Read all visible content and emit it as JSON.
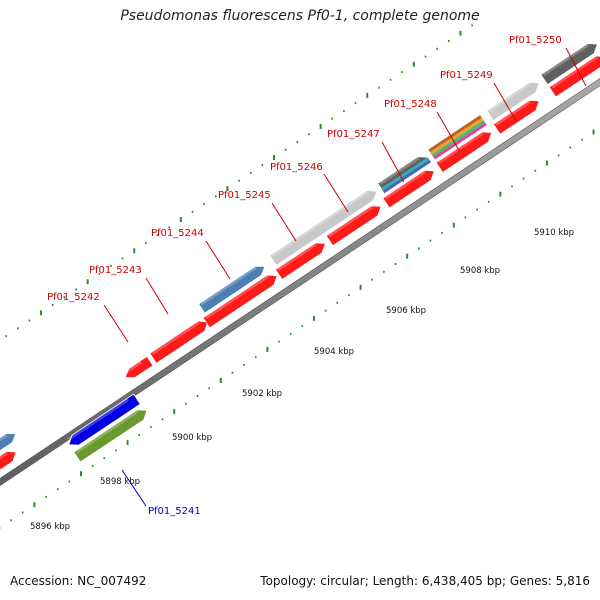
{
  "title": "Pseudomonas fluorescens Pf0-1, complete genome",
  "footer": {
    "accession_label": "Accession:",
    "accession": "NC_007492",
    "topology_label": "Topology:",
    "topology": "circular",
    "length_label": "Length:",
    "length": "6,438,405 bp",
    "genes_label": "Genes:",
    "genes": "5,816"
  },
  "colors": {
    "backbone": "#8f8f8f",
    "red_gene": "#ff1a1a",
    "tick": "#2e8b2e",
    "label_red": "#cc0000",
    "label_blue": "#0000cc",
    "steelblue": "#4d7fb3",
    "gray": "#c8c8c8",
    "darkgray": "#606060",
    "blue": "#0000e0",
    "olive": "#6a9a2e"
  },
  "ruler": {
    "unit": "kbp",
    "labels": [
      "5896 kbp",
      "5898 kbp",
      "5900 kbp",
      "5902 kbp",
      "5904 kbp",
      "5906 kbp",
      "5908 kbp",
      "5910 kbp"
    ]
  },
  "gene_labels": [
    {
      "text": "Pf01_5241",
      "color": "blue"
    },
    {
      "text": "Pf01_5242",
      "color": "red"
    },
    {
      "text": "Pf01_5243",
      "color": "red"
    },
    {
      "text": "Pf01_5244",
      "color": "red"
    },
    {
      "text": "Pf01_5245",
      "color": "red"
    },
    {
      "text": "Pf01_5246",
      "color": "red"
    },
    {
      "text": "Pf01_5247",
      "color": "red"
    },
    {
      "text": "Pf01_5248",
      "color": "red"
    },
    {
      "text": "Pf01_5249",
      "color": "red"
    },
    {
      "text": "Pf01_5250",
      "color": "red"
    }
  ]
}
